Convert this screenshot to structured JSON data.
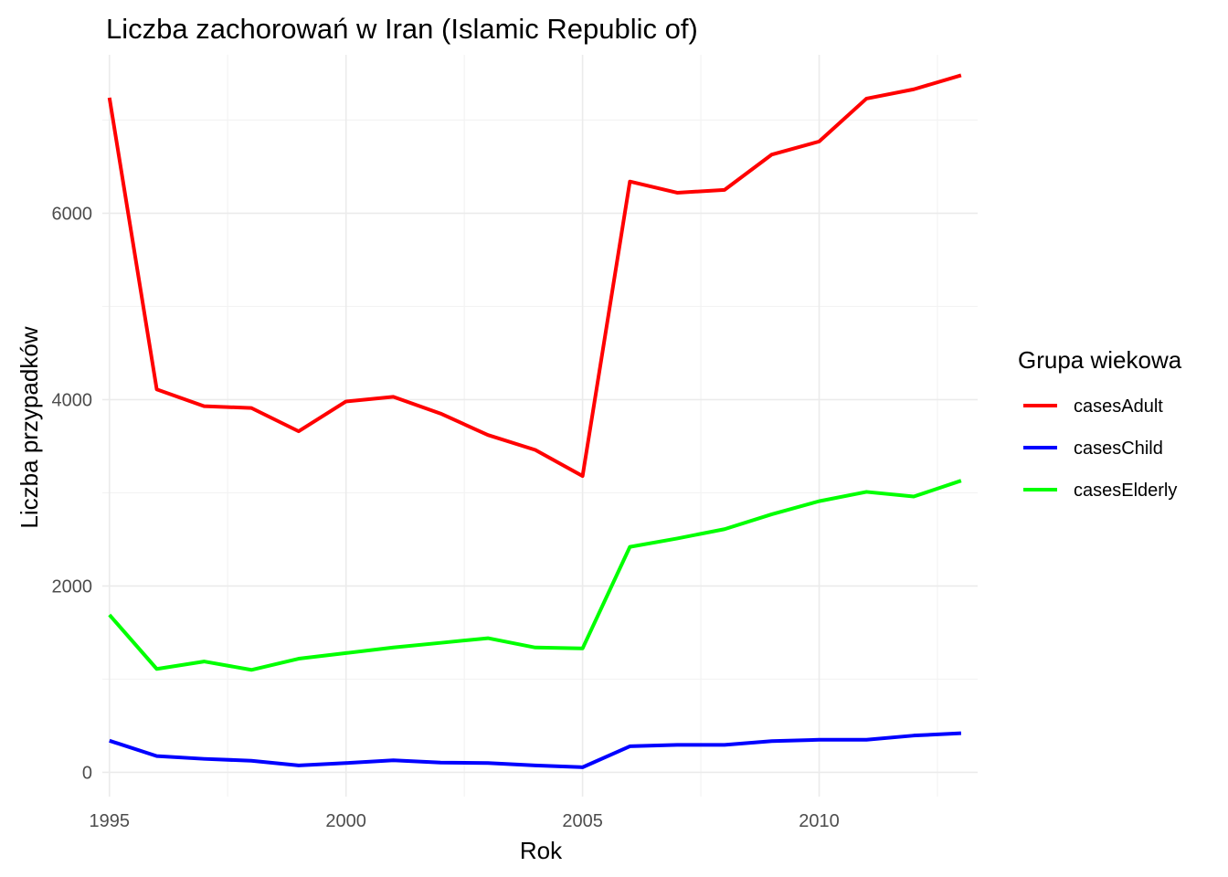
{
  "chart_data": {
    "type": "line",
    "title": "Liczba zachorowań w Iran (Islamic Republic of)",
    "xlabel": "Rok",
    "ylabel": "Liczba przypadków",
    "xlim": [
      1994.85,
      2013.35
    ],
    "ylim": [
      -260,
      7700
    ],
    "x_ticks": [
      1995,
      2000,
      2005,
      2010
    ],
    "x_tick_labels": [
      "1995",
      "2000",
      "2005",
      "2010"
    ],
    "x_minor": [
      1997.5,
      2002.5,
      2007.5,
      2012.5
    ],
    "y_ticks": [
      0,
      2000,
      4000,
      6000
    ],
    "y_tick_labels": [
      "0",
      "2000",
      "4000",
      "6000"
    ],
    "y_minor": [
      1000,
      3000,
      5000,
      7000
    ],
    "grid": true,
    "legend": {
      "title": "Grupa wiekowa",
      "position": "right"
    },
    "x": [
      1995,
      1996,
      1997,
      1998,
      1999,
      2000,
      2001,
      2002,
      2003,
      2004,
      2005,
      2006,
      2007,
      2008,
      2009,
      2010,
      2011,
      2012,
      2013
    ],
    "series": [
      {
        "name": "casesAdult",
        "color": "#ff0000",
        "values": [
          7240,
          4110,
          3930,
          3910,
          3660,
          3980,
          4030,
          3850,
          3620,
          3460,
          3180,
          6340,
          6220,
          6250,
          6630,
          6770,
          7230,
          7330,
          7480
        ]
      },
      {
        "name": "casesChild",
        "color": "#0000ff",
        "values": [
          340,
          175,
          145,
          125,
          75,
          100,
          130,
          105,
          100,
          75,
          55,
          280,
          295,
          295,
          335,
          350,
          350,
          395,
          420
        ]
      },
      {
        "name": "casesElderly",
        "color": "#00ff00",
        "values": [
          1690,
          1110,
          1190,
          1100,
          1220,
          1280,
          1340,
          1390,
          1440,
          1340,
          1330,
          2420,
          2510,
          2610,
          2770,
          2910,
          3010,
          2960,
          3130
        ]
      }
    ]
  }
}
